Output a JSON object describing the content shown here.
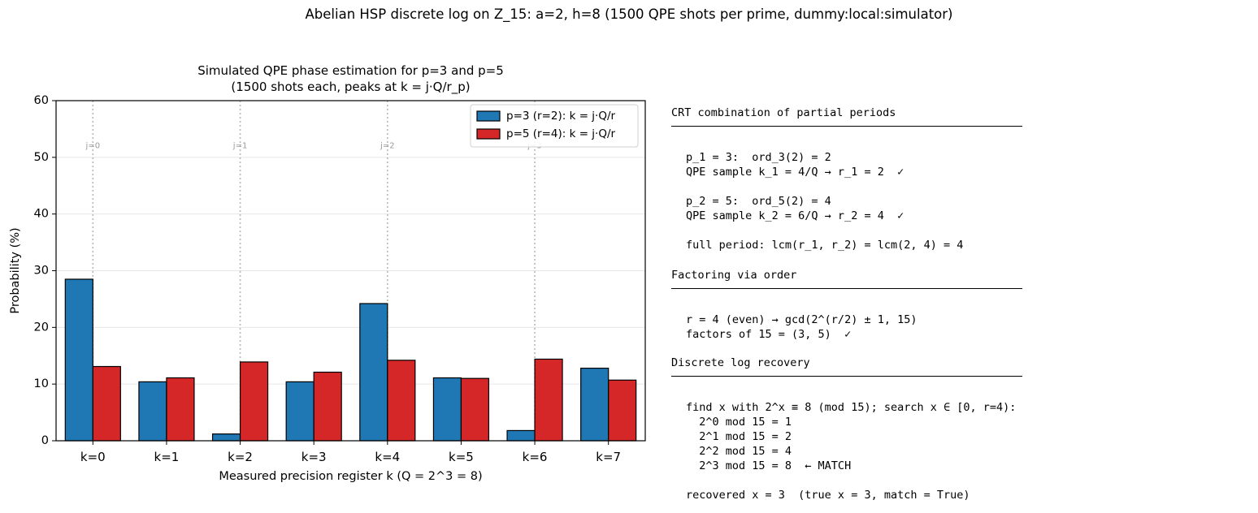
{
  "suptitle": "Abelian HSP discrete log on Z_15: a=2, h=8  (1500 QPE shots per prime, dummy:local:simulator)",
  "chart_data": {
    "type": "bar",
    "title": [
      "Simulated QPE phase estimation for p=3 and p=5",
      "(1500 shots each, peaks at k = j·Q/r_p)"
    ],
    "xlabel": "Measured precision register k (Q = 2^3 = 8)",
    "ylabel": "Probability (%)",
    "categories": [
      "k=0",
      "k=1",
      "k=2",
      "k=3",
      "k=4",
      "k=5",
      "k=6",
      "k=7"
    ],
    "ylim": [
      0,
      60
    ],
    "yticks": [
      0,
      10,
      20,
      30,
      40,
      50,
      60
    ],
    "grid": true,
    "legend_position": "top-right",
    "series": [
      {
        "name": "p=3 (r=2): k = j·Q/r",
        "color": "#1f77b4",
        "values": [
          28.5,
          10.4,
          1.2,
          10.4,
          24.2,
          11.1,
          1.8,
          12.8
        ]
      },
      {
        "name": "p=5 (r=4): k = j·Q/r",
        "color": "#d62728",
        "values": [
          13.1,
          11.1,
          13.9,
          12.1,
          14.2,
          11.0,
          14.4,
          10.7
        ]
      }
    ],
    "peak_lines": [
      {
        "k": 0,
        "label": "j=0"
      },
      {
        "k": 2,
        "label": "j=1"
      },
      {
        "k": 4,
        "label": "j=2"
      },
      {
        "k": 6,
        "label": "j=3"
      }
    ]
  },
  "panel": {
    "crt_heading": "CRT combination of partial periods",
    "crt_lines": "p_1 = 3:  ord_3(2) = 2\nQPE sample k_1 = 4/Q → r_1 = 2  ✓\n\np_2 = 5:  ord_5(2) = 4\nQPE sample k_2 = 6/Q → r_2 = 4  ✓\n\nfull period: lcm(r_1, r_2) = lcm(2, 4) = 4",
    "factor_heading": "Factoring via order",
    "factor_lines": "r = 4 (even) → gcd(2^(r/2) ± 1, 15)\nfactors of 15 = (3, 5)  ✓",
    "dlog_heading": "Discrete log recovery",
    "dlog_lines": "find x with 2^x ≡ 8 (mod 15); search x ∈ [0, r=4):\n  2^0 mod 15 = 1\n  2^1 mod 15 = 2\n  2^2 mod 15 = 4\n  2^3 mod 15 = 8  ← MATCH\n\nrecovered x = 3  (true x = 3, match = True)"
  }
}
